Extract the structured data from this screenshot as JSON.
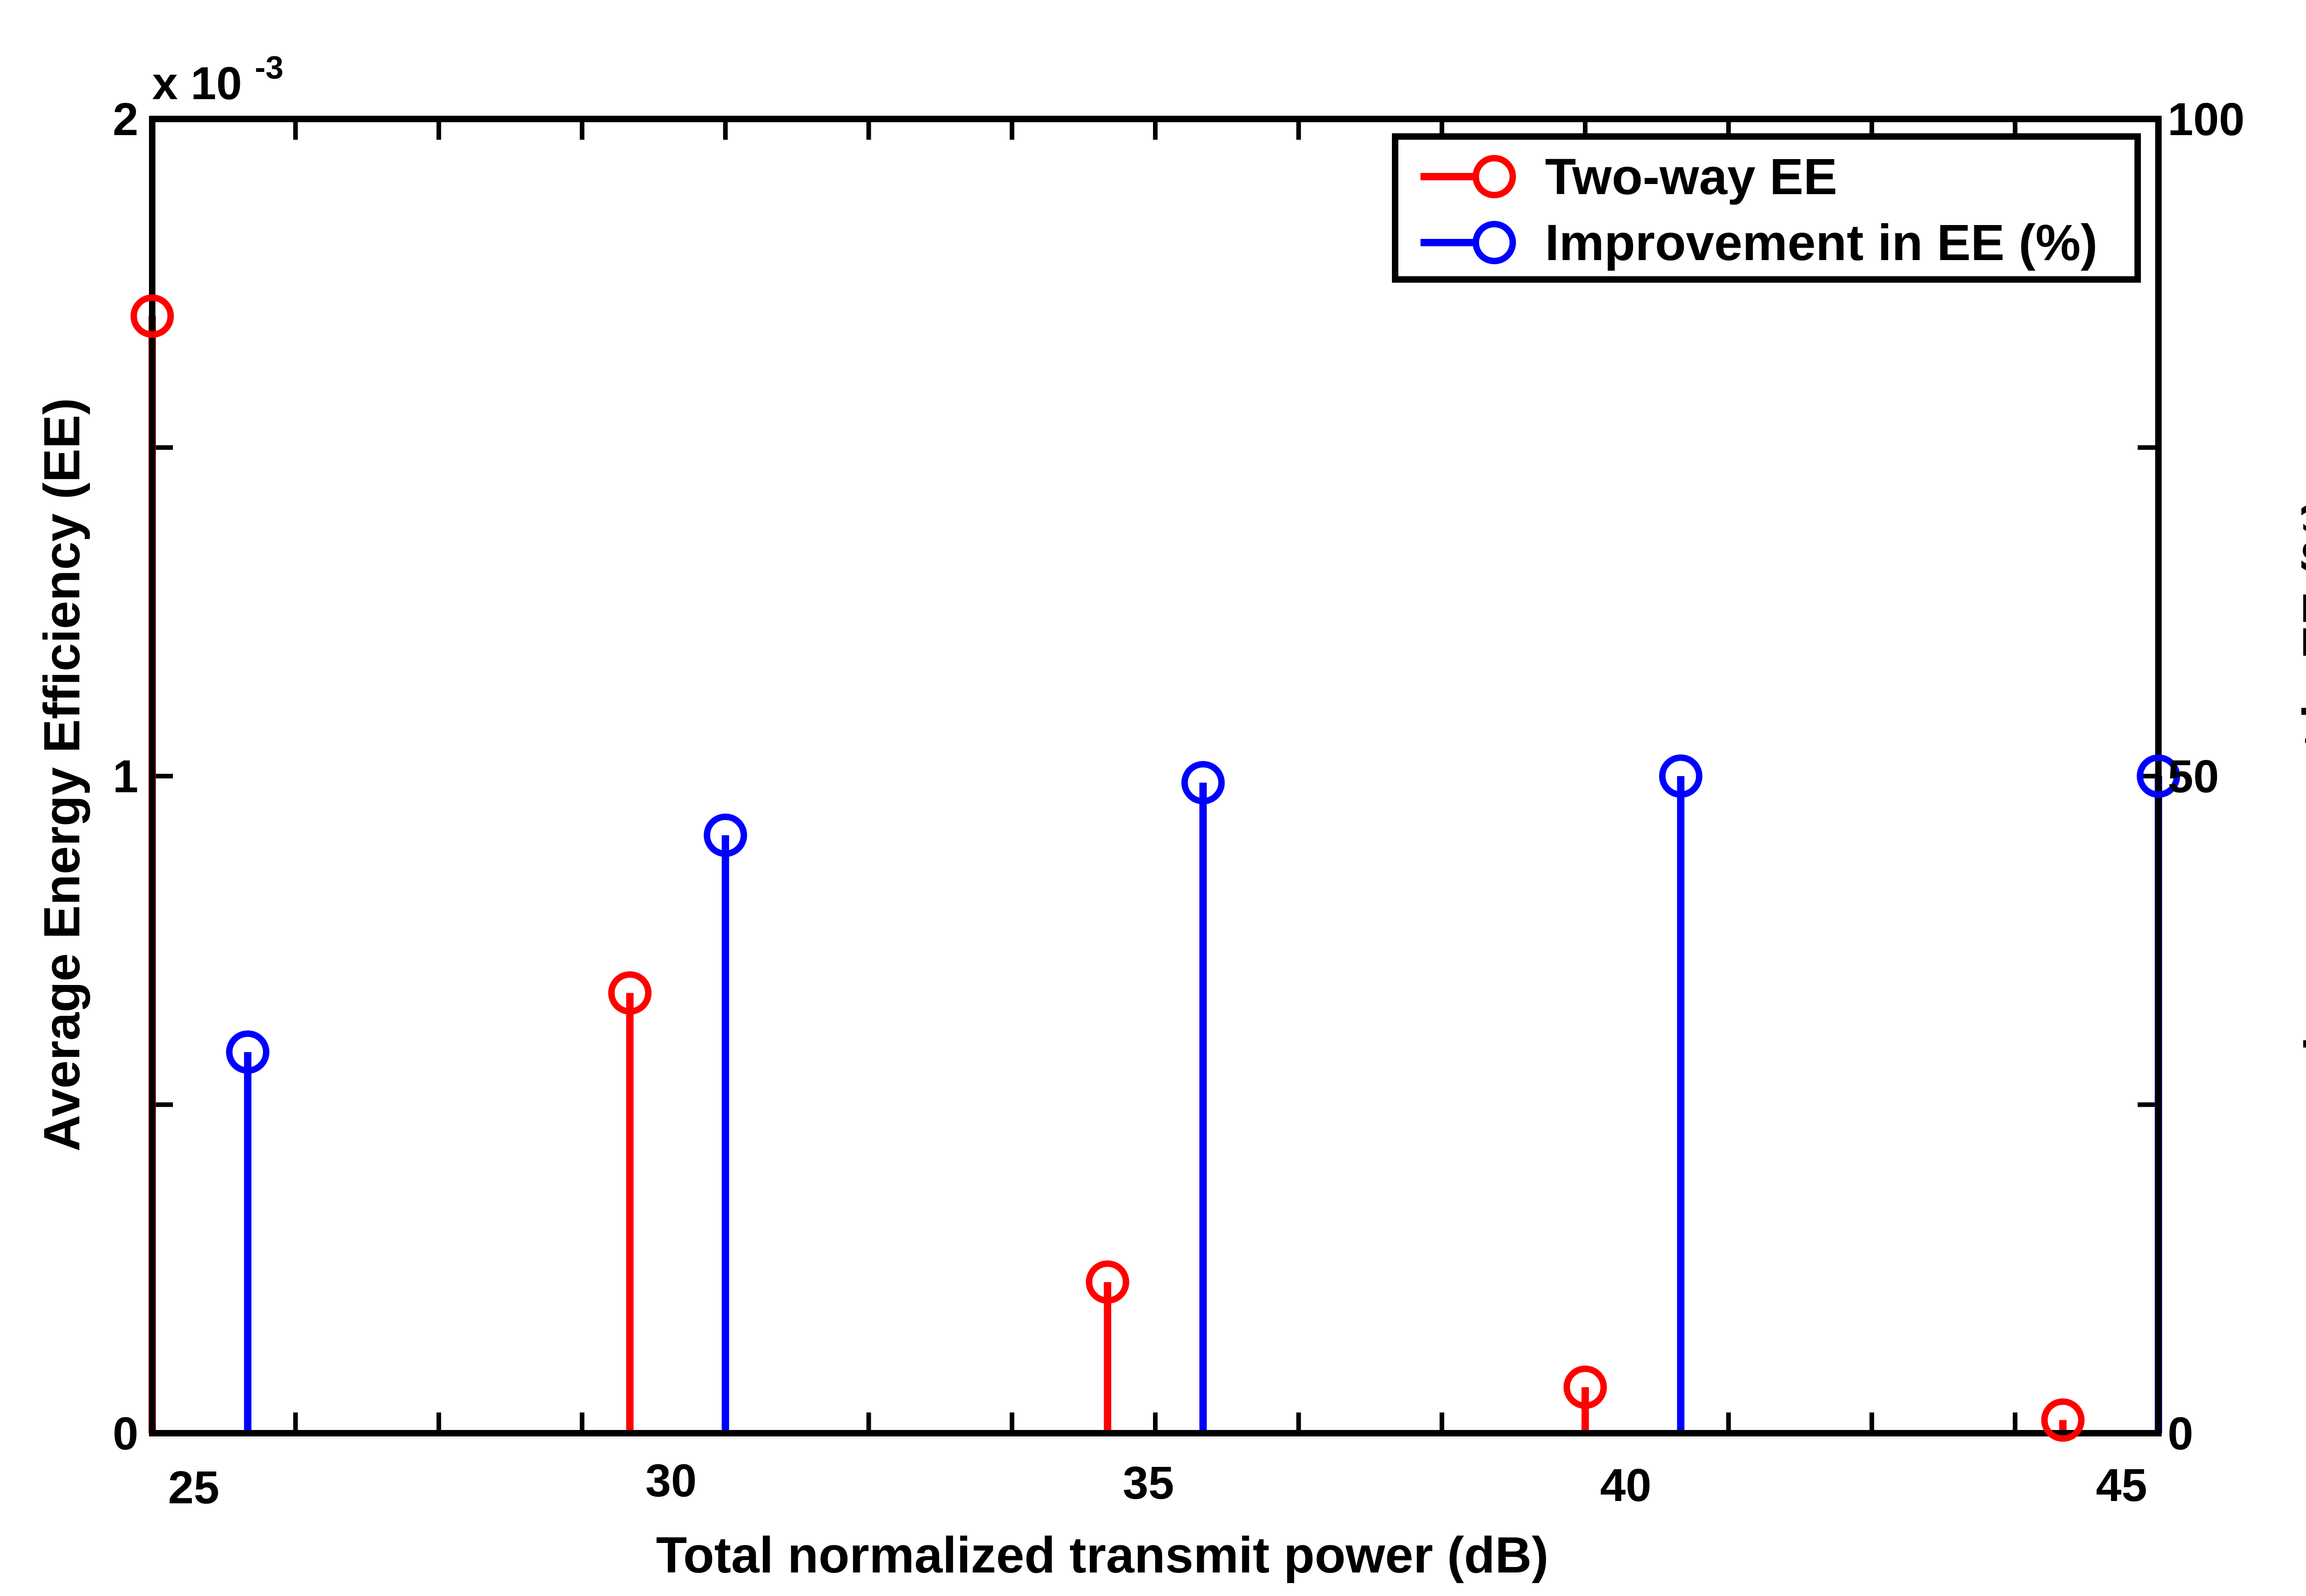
{
  "chart_data": {
    "type": "stem",
    "xlabel": "Total normalized transmit power (dB)",
    "ylabel_left": "Average Energy Efficiency (EE)",
    "ylabel_right": "Improvement in EE (%)",
    "left_axis_exponent": "x 10",
    "left_axis_exponent_power": "-3",
    "x_ticks": [
      "25",
      "30",
      "35",
      "40",
      "45"
    ],
    "y_left_ticks": [
      "0",
      "1",
      "2"
    ],
    "y_right_ticks": [
      "0",
      "50",
      "100"
    ],
    "xlim": [
      25,
      46
    ],
    "ylim_left": [
      0,
      2
    ],
    "ylim_right": [
      0,
      100
    ],
    "legend_position": "top-right",
    "series": [
      {
        "name": "Two-way EE",
        "color": "#ff0000",
        "axis": "left",
        "x": [
          25,
          30,
          35,
          40,
          45
        ],
        "y": [
          1.7,
          0.67,
          0.23,
          0.07,
          0.02
        ]
      },
      {
        "name": "Improvement in EE (%)",
        "color": "#0000ff",
        "axis": "right",
        "x": [
          26,
          31,
          36,
          41,
          46
        ],
        "y": [
          29,
          45.5,
          49.5,
          50,
          50
        ]
      }
    ]
  }
}
